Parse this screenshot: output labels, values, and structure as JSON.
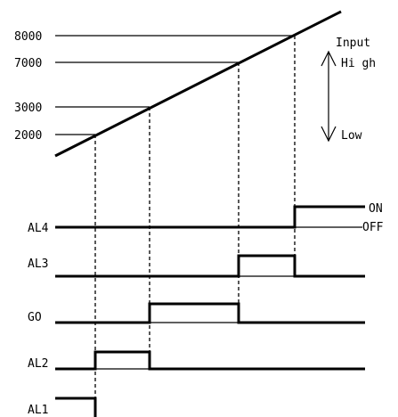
{
  "input_levels": [
    "8000",
    "7000",
    "3000",
    "2000"
  ],
  "legend": {
    "input": "Input",
    "high": "Hi gh",
    "low": "Low"
  },
  "signals": [
    {
      "name": "AL4",
      "on_from": "8000",
      "on_to": null
    },
    {
      "name": "AL3",
      "on_from": "7000",
      "on_to": "8000"
    },
    {
      "name": "GO",
      "on_from": "3000",
      "on_to": "7000"
    },
    {
      "name": "AL2",
      "on_from": "2000",
      "on_to": "3000"
    },
    {
      "name": "AL1",
      "on_from": null,
      "on_to": "2000"
    }
  ],
  "states": {
    "on": "ON",
    "off": "OFF"
  }
}
